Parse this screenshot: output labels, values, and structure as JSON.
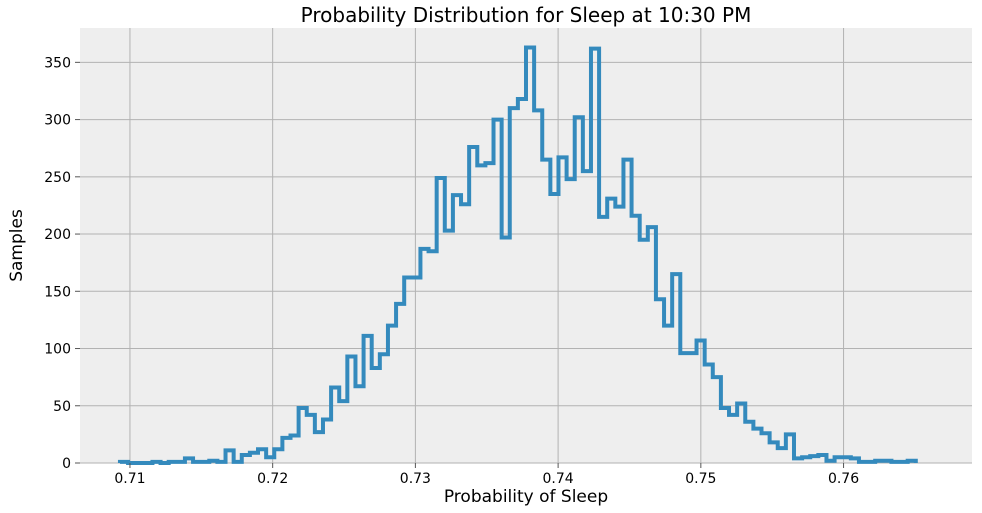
{
  "chart_data": {
    "type": "histogram",
    "title": "Probability Distribution for Sleep at 10:30 PM",
    "xlabel": "Probability of Sleep",
    "ylabel": "Samples",
    "xlim": [
      0.7065,
      0.769
    ],
    "ylim": [
      0,
      380
    ],
    "xticks": [
      "0.71",
      "0.72",
      "0.73",
      "0.74",
      "0.75",
      "0.76"
    ],
    "xtick_values": [
      0.71,
      0.72,
      0.73,
      0.74,
      0.75,
      0.76
    ],
    "yticks": [
      "0",
      "50",
      "100",
      "150",
      "200",
      "250",
      "300",
      "350"
    ],
    "ytick_values": [
      0,
      50,
      100,
      150,
      200,
      250,
      300,
      350
    ],
    "grid": true,
    "bin_start": 0.7093,
    "bin_width": 0.000569,
    "counts": [
      1,
      0,
      0,
      0,
      1,
      0,
      1,
      1,
      4,
      1,
      1,
      2,
      1,
      11,
      1,
      7,
      9,
      12,
      5,
      12,
      22,
      24,
      48,
      42,
      27,
      38,
      66,
      54,
      93,
      67,
      111,
      83,
      95,
      120,
      139,
      162,
      162,
      187,
      185,
      249,
      203,
      234,
      226,
      276,
      260,
      262,
      300,
      197,
      310,
      318,
      363,
      308,
      265,
      235,
      267,
      248,
      302,
      255,
      362,
      215,
      231,
      224,
      265,
      216,
      195,
      206,
      143,
      120,
      165,
      96,
      96,
      107,
      86,
      75,
      48,
      42,
      52,
      36,
      30,
      26,
      18,
      13,
      25,
      4,
      5,
      6,
      7,
      2,
      5,
      5,
      4,
      1,
      1,
      2,
      2,
      1,
      1,
      2
    ],
    "color": "#348abd",
    "plot_background": "#eeeeee",
    "grid_color": "#b2b2b2"
  }
}
